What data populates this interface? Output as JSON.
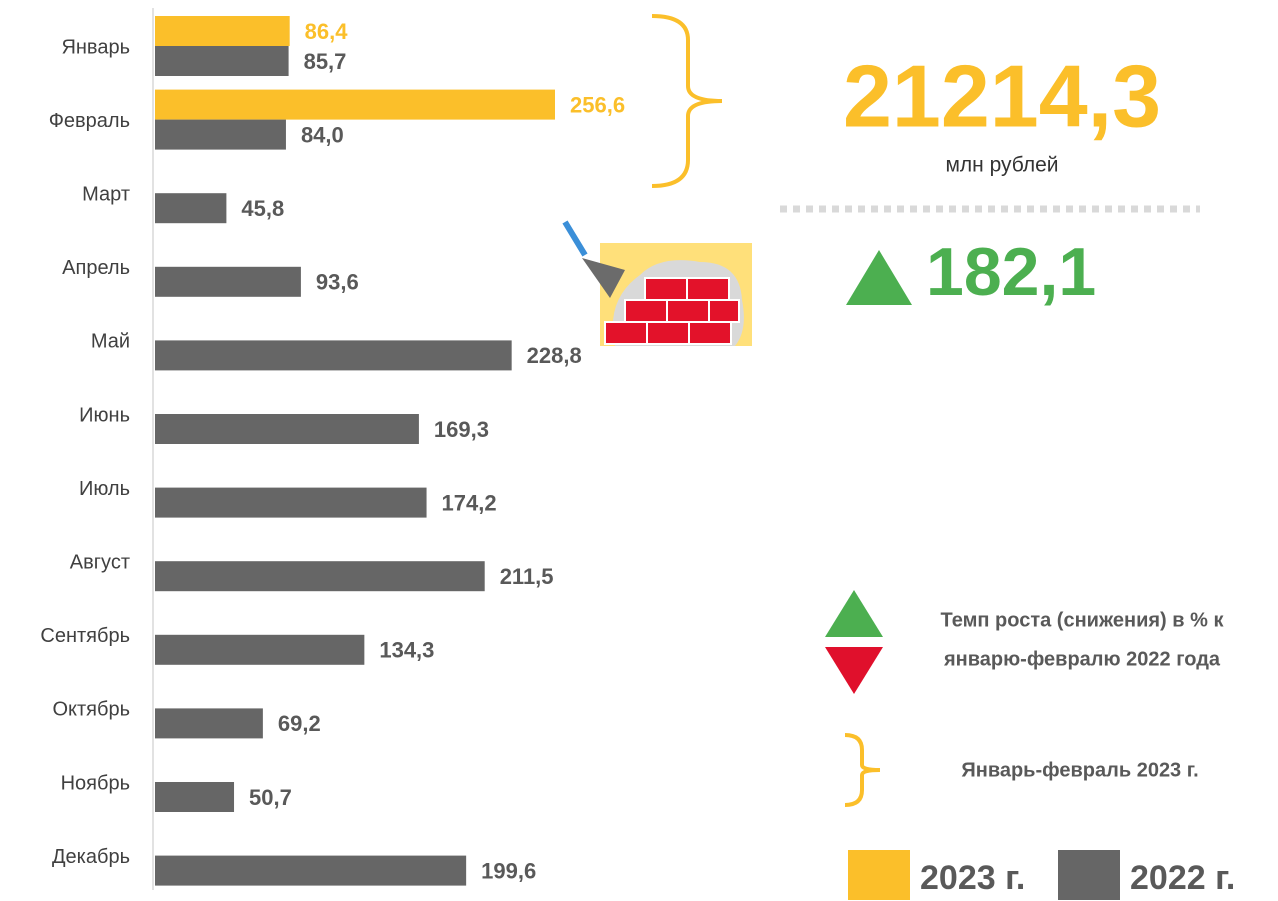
{
  "chart_data": {
    "type": "bar",
    "orientation": "horizontal",
    "categories": [
      "Январь",
      "Февраль",
      "Март",
      "Апрель",
      "Май",
      "Июнь",
      "Июль",
      "Август",
      "Сентябрь",
      "Октябрь",
      "Ноябрь",
      "Декабрь"
    ],
    "series": [
      {
        "name": "2023 г.",
        "color": "#fbbf2a",
        "values": [
          86.4,
          256.6,
          null,
          null,
          null,
          null,
          null,
          null,
          null,
          null,
          null,
          null
        ],
        "value_labels": [
          "86,4",
          "256,6",
          null,
          null,
          null,
          null,
          null,
          null,
          null,
          null,
          null,
          null
        ]
      },
      {
        "name": "2022 г.",
        "color": "#666666",
        "values": [
          85.7,
          84.0,
          45.8,
          93.6,
          228.8,
          169.3,
          174.2,
          211.5,
          134.3,
          69.2,
          50.7,
          199.6
        ],
        "value_labels": [
          "85,7",
          "84,0",
          "45,8",
          "93,6",
          "228,8",
          "169,3",
          "174,2",
          "211,5",
          "134,3",
          "69,2",
          "50,7",
          "199,6"
        ]
      }
    ],
    "annotations": {
      "total": "21214,3",
      "total_unit": "млн рублей",
      "growth": "182,1",
      "growth_legend": [
        "Темп роста (снижения) в % к",
        "январю-февралю 2022 года"
      ],
      "bracket_legend": "Январь-февраль 2023 г."
    }
  }
}
